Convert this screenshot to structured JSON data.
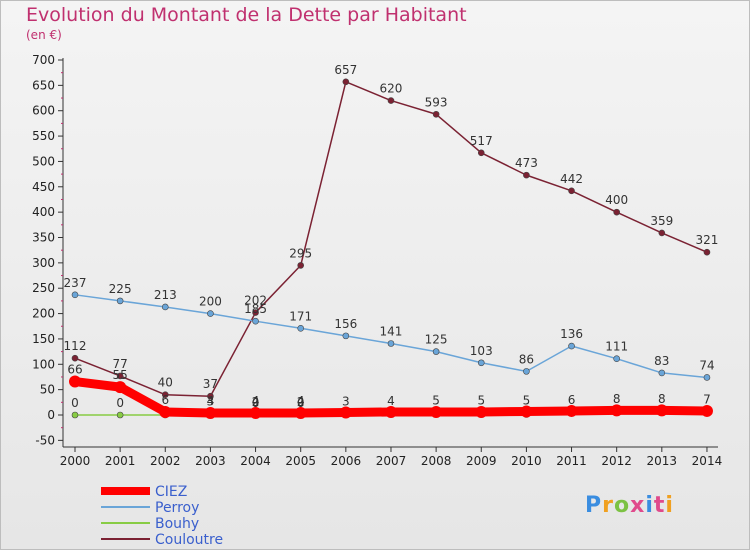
{
  "title": "Evolution du Montant de la Dette par Habitant",
  "subtitle": "(en €)",
  "logo": {
    "text": "Proxiti",
    "colors": [
      "#3a8de0",
      "#f0a020",
      "#7cc243",
      "#e04a8c",
      "#3a8de0",
      "#e04a8c",
      "#f0a020"
    ]
  },
  "chart_data": {
    "type": "line",
    "categories": [
      "2000",
      "2001",
      "2002",
      "2003",
      "2004",
      "2005",
      "2006",
      "2007",
      "2008",
      "2009",
      "2010",
      "2011",
      "2012",
      "2013",
      "2014"
    ],
    "y_ticks": [
      "-50",
      "0",
      "50",
      "100",
      "150",
      "200",
      "250",
      "300",
      "350",
      "400",
      "450",
      "500",
      "550",
      "600",
      "650",
      "700"
    ],
    "ylim": [
      -50,
      700
    ],
    "grid": false,
    "legend_position": "bottom-left",
    "series": [
      {
        "name": "CIEZ",
        "color": "#ff0000",
        "width": 9,
        "values": [
          66,
          55,
          6,
          4,
          4,
          4,
          5,
          6,
          6,
          6,
          7,
          8,
          9,
          9,
          8
        ],
        "labels": [
          "66",
          "55",
          "6",
          "4",
          "4",
          "4",
          "",
          "",
          "",
          "",
          "",
          "",
          "",
          "",
          ""
        ]
      },
      {
        "name": "Perroy",
        "color": "#6aa5d8",
        "width": 1.5,
        "values": [
          237,
          225,
          213,
          200,
          185,
          171,
          156,
          141,
          125,
          103,
          86,
          136,
          111,
          83,
          74
        ],
        "labels": [
          "237",
          "225",
          "213",
          "200",
          "185",
          "171",
          "156",
          "141",
          "125",
          "103",
          "86",
          "136",
          "111",
          "83",
          "74"
        ]
      },
      {
        "name": "Bouhy",
        "color": "#88cc44",
        "width": 1.5,
        "values": [
          0,
          0,
          0,
          0,
          0,
          0,
          0,
          1,
          1,
          1,
          1,
          3,
          5,
          5,
          5
        ],
        "labels": [
          "0",
          "0",
          "",
          "",
          "",
          "",
          "",
          "",
          "",
          "",
          "",
          "",
          "",
          "",
          ""
        ]
      },
      {
        "name": "Couloutre",
        "color": "#7b2233",
        "width": 1.5,
        "values": [
          112,
          77,
          40,
          37,
          202,
          295,
          657,
          620,
          593,
          517,
          473,
          442,
          400,
          359,
          321
        ],
        "labels": [
          "112",
          "77",
          "40",
          "37",
          "202",
          "295",
          "657",
          "620",
          "593",
          "517",
          "473",
          "442",
          "400",
          "359",
          "321"
        ]
      }
    ],
    "annotations": [
      {
        "x": "2004",
        "y": 0,
        "text": "0"
      },
      {
        "x": "2004",
        "y": 2,
        "text": "2"
      },
      {
        "x": "2005",
        "y": 0,
        "text": "0"
      },
      {
        "x": "2005",
        "y": 2,
        "text": "2"
      },
      {
        "x": "2003",
        "y": 3,
        "text": "3"
      },
      {
        "x": "2006",
        "y": 3,
        "text": "3"
      },
      {
        "x": "2007",
        "y": 4,
        "text": "4"
      },
      {
        "x": "2008",
        "y": 5,
        "text": "5"
      },
      {
        "x": "2009",
        "y": 5,
        "text": "5"
      },
      {
        "x": "2010",
        "y": 5,
        "text": "5"
      },
      {
        "x": "2011",
        "y": 6,
        "text": "6"
      },
      {
        "x": "2012",
        "y": 8,
        "text": "8"
      },
      {
        "x": "2013",
        "y": 8,
        "text": "8"
      },
      {
        "x": "2014",
        "y": 7,
        "text": "7"
      }
    ]
  }
}
